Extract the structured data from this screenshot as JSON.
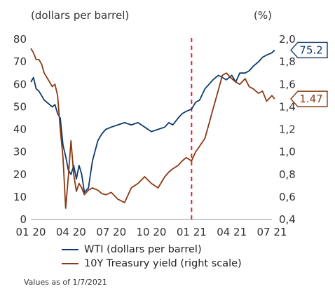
{
  "chart_data": {
    "type": "line",
    "left_axis_label": "(dollars per barrel)",
    "right_axis_label": "(%)",
    "x_ticks": [
      "01 20",
      "04 20",
      "07 20",
      "10 20",
      "01 21",
      "04 21",
      "07 21"
    ],
    "y_left": {
      "min": 0,
      "max": 80,
      "ticks": [
        0,
        10,
        20,
        30,
        40,
        50,
        60,
        70,
        80
      ]
    },
    "y_right": {
      "min": 0.4,
      "max": 2.0,
      "ticks": [
        "0,4",
        "0,6",
        "0,8",
        "1,0",
        "1,2",
        "1,4",
        "1,6",
        "1,8",
        "2,0"
      ]
    },
    "vline_month": 12,
    "series": [
      {
        "name": "WTI (dollars per barrel)",
        "color": "#0e3a6b",
        "axis": "left",
        "end_label": "75.2",
        "x": [
          0,
          0.2,
          0.4,
          0.6,
          0.8,
          1.0,
          1.2,
          1.4,
          1.6,
          1.8,
          2.0,
          2.2,
          2.4,
          2.6,
          2.8,
          3.0,
          3.2,
          3.4,
          3.6,
          3.8,
          4.0,
          4.3,
          4.6,
          5.0,
          5.3,
          5.6,
          6.0,
          6.5,
          7.0,
          7.5,
          8.0,
          8.5,
          9.0,
          9.5,
          10.0,
          10.3,
          10.6,
          11.0,
          11.3,
          11.6,
          12.0,
          12.3,
          12.6,
          13.0,
          13.3,
          13.6,
          14.0,
          14.3,
          14.6,
          15.0,
          15.3,
          15.6,
          16.0,
          16.3,
          16.6,
          17.0,
          17.3,
          17.6,
          18.0,
          18.2
        ],
        "values": [
          61,
          63,
          58,
          57,
          55,
          53,
          52,
          51,
          50,
          51,
          47,
          45,
          33,
          28,
          22,
          20,
          24,
          18,
          24,
          20,
          12,
          14,
          26,
          35,
          38,
          40,
          41,
          42,
          43,
          42,
          43,
          41,
          39,
          40,
          41,
          43,
          42,
          45,
          47,
          48,
          49,
          52,
          53,
          58,
          60,
          62,
          64,
          63,
          62,
          64,
          61,
          65,
          65,
          66,
          68,
          70,
          72,
          73,
          74,
          75.2
        ]
      },
      {
        "name": "10Y Treasury yield (right scale)",
        "color": "#8a3a14",
        "axis": "right",
        "end_label": "1.47",
        "x": [
          0,
          0.2,
          0.4,
          0.6,
          0.8,
          1.0,
          1.2,
          1.4,
          1.6,
          1.8,
          2.0,
          2.2,
          2.4,
          2.6,
          2.8,
          3.0,
          3.2,
          3.4,
          3.6,
          3.8,
          4.0,
          4.3,
          4.6,
          5.0,
          5.3,
          5.6,
          6.0,
          6.5,
          7.0,
          7.5,
          8.0,
          8.5,
          9.0,
          9.5,
          10.0,
          10.3,
          10.6,
          11.0,
          11.3,
          11.6,
          12.0,
          12.3,
          12.6,
          13.0,
          13.3,
          13.6,
          14.0,
          14.3,
          14.6,
          15.0,
          15.3,
          15.6,
          16.0,
          16.3,
          16.6,
          17.0,
          17.3,
          17.6,
          18.0,
          18.2
        ],
        "values": [
          1.92,
          1.88,
          1.82,
          1.82,
          1.78,
          1.7,
          1.66,
          1.62,
          1.58,
          1.6,
          1.5,
          1.2,
          0.95,
          0.5,
          0.78,
          1.1,
          0.8,
          0.65,
          0.72,
          0.68,
          0.62,
          0.66,
          0.68,
          0.66,
          0.63,
          0.62,
          0.64,
          0.58,
          0.55,
          0.68,
          0.72,
          0.78,
          0.72,
          0.68,
          0.78,
          0.82,
          0.85,
          0.88,
          0.92,
          0.95,
          0.92,
          1.0,
          1.05,
          1.12,
          1.25,
          1.38,
          1.55,
          1.68,
          1.7,
          1.65,
          1.62,
          1.6,
          1.65,
          1.58,
          1.56,
          1.52,
          1.54,
          1.45,
          1.5,
          1.47
        ]
      }
    ]
  },
  "legend": {
    "wti": "WTI (dollars per barrel)",
    "yield": "10Y Treasury yield (right scale)"
  },
  "footnote": "Values as of 1/7/2021"
}
